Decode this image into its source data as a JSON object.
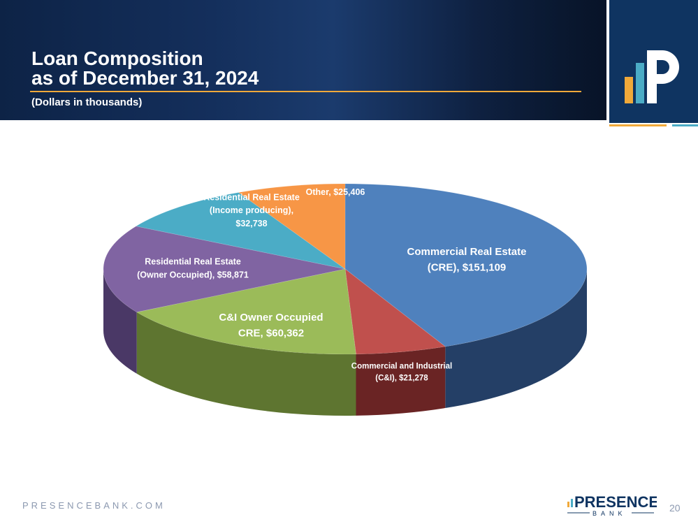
{
  "slide": {
    "title_line1": "Loan Composition",
    "title_line2": "as of December 31, 2024",
    "subtitle": "(Dollars in thousands)",
    "footer_url": "PRESENCEBANK.COM",
    "page_number": "20",
    "brand_name": "PRESENCE",
    "brand_sub": "BANK"
  },
  "colors": {
    "header_bg": "#142f5c",
    "accent_orange": "#f0a93a",
    "logo_blue": "#0f3461"
  },
  "chart_data": {
    "type": "pie",
    "title": "",
    "series": [
      {
        "values": [
          151109,
          21278,
          60362,
          58871,
          32738,
          25406
        ]
      }
    ],
    "categories": [
      "Commercial Real Estate (CRE)",
      "Commercial and Industrial (C&I)",
      "C&I Owner Occupied CRE",
      "Residential Real Estate (Owner Occupied)",
      "Residential Real Estate (Income producing)",
      "Other"
    ],
    "slice_colors": [
      "#4f81bd",
      "#c0504d",
      "#9bbb59",
      "#8064a2",
      "#4bacc6",
      "#f79646"
    ],
    "side_colors": [
      "#243f66",
      "#6a2424",
      "#5e7530",
      "#4a3866",
      "#2a6b80",
      "#a05a20"
    ],
    "labels": [
      [
        "Commercial Real Estate",
        "(CRE), $151,109"
      ],
      [
        "Commercial and Industrial",
        "(C&I), $21,278"
      ],
      [
        "C&I Owner Occupied",
        "CRE, $60,362"
      ],
      [
        "Residential Real Estate",
        "(Owner Occupied), $58,871"
      ],
      [
        "Residential Real Estate",
        "(Income producing),",
        "$32,738"
      ],
      [
        "Other, $25,406"
      ]
    ],
    "legend": "none",
    "grid": false
  }
}
